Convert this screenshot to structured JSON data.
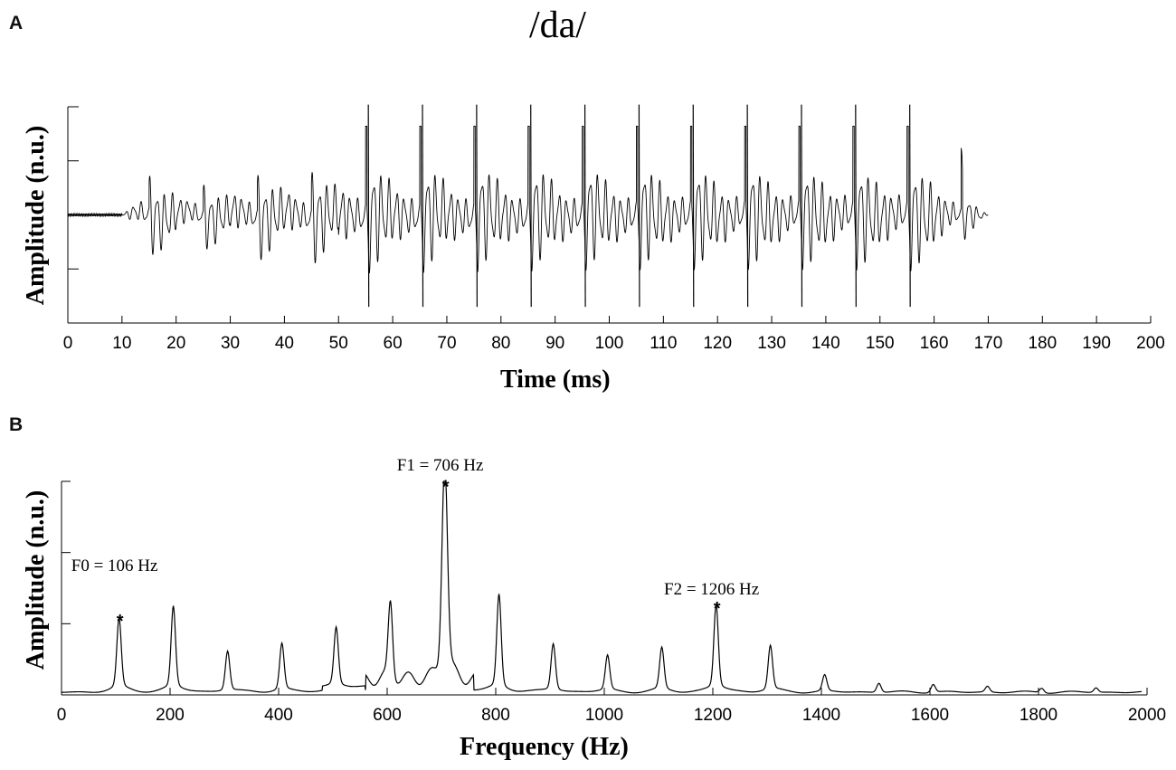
{
  "figure": {
    "title": "/da/",
    "panel_a_label": "A",
    "panel_b_label": "B"
  },
  "chart_data": [
    {
      "type": "line",
      "panel": "A",
      "title": "/da/",
      "xlabel": "Time (ms)",
      "ylabel": "Amplitude (n.u.)",
      "xlim": [
        0,
        200
      ],
      "ylim": [
        -1,
        1
      ],
      "x_ticks": [
        0,
        10,
        20,
        30,
        40,
        50,
        60,
        70,
        80,
        90,
        100,
        110,
        120,
        130,
        140,
        150,
        160,
        170,
        180,
        190,
        200
      ],
      "y_ticks_labeled": false,
      "grid": false,
      "signal": {
        "description": "synthetic speech waveform",
        "onset_ms": 10,
        "offset_ms": 170,
        "pitch_period_ms": 10,
        "pulse_peaks_ms": [
          15,
          25,
          35,
          45,
          55,
          65,
          75,
          85,
          95,
          105,
          115,
          125,
          135,
          145,
          155
        ],
        "pulse_peak_amplitude": [
          0.55,
          0.45,
          0.6,
          0.65,
          0.85,
          0.85,
          0.85,
          0.85,
          0.85,
          0.85,
          0.85,
          0.85,
          0.85,
          0.85,
          0.85
        ],
        "decay_end_ms": 170
      }
    },
    {
      "type": "line",
      "panel": "B",
      "xlabel": "Frequency (Hz)",
      "ylabel": "Amplitude (n.u.)",
      "xlim": [
        0,
        2000
      ],
      "ylim": [
        0,
        1
      ],
      "x_ticks": [
        0,
        200,
        400,
        600,
        800,
        1000,
        1200,
        1400,
        1600,
        1800,
        2000
      ],
      "y_ticks_labeled": false,
      "grid": false,
      "harmonics": {
        "frequencies_hz": [
          106,
          206,
          306,
          406,
          506,
          606,
          706,
          806,
          906,
          1006,
          1106,
          1206,
          1306,
          1406,
          1506,
          1606,
          1706,
          1806,
          1906
        ],
        "amplitudes": [
          0.3,
          0.35,
          0.17,
          0.2,
          0.25,
          0.33,
          0.93,
          0.4,
          0.2,
          0.15,
          0.18,
          0.36,
          0.19,
          0.07,
          0.04,
          0.035,
          0.025,
          0.02,
          0.02
        ]
      },
      "annotations": [
        {
          "text": "F0 = 106 Hz",
          "x": 106,
          "y": 0.58
        },
        {
          "text": "F1 = 706 Hz",
          "x": 706,
          "y": 1.05
        },
        {
          "text": "F2 = 1206 Hz",
          "x": 1206,
          "y": 0.47
        }
      ],
      "markers": [
        {
          "symbol": "*",
          "x": 106,
          "y": 0.3
        },
        {
          "symbol": "*",
          "x": 706,
          "y": 0.93
        },
        {
          "symbol": "*",
          "x": 1206,
          "y": 0.36
        }
      ]
    }
  ]
}
